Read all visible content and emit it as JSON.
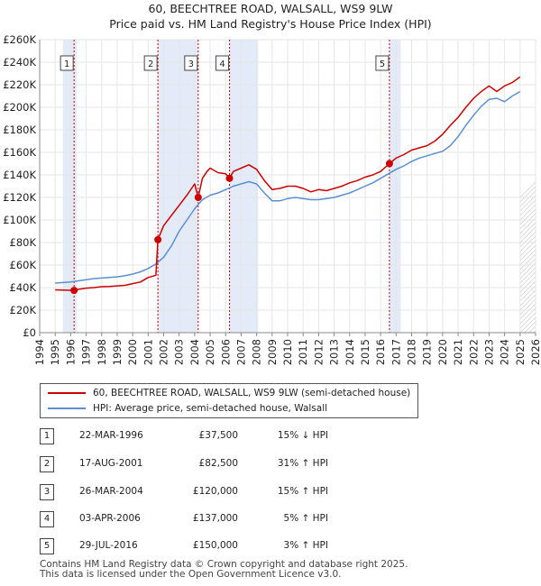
{
  "title_line1": "60, BEECHTREE ROAD, WALSALL, WS9 9LW",
  "title_line2": "Price paid vs. HM Land Registry's House Price Index (HPI)",
  "chart_data": {
    "type": "line",
    "xlim": [
      1994,
      2026
    ],
    "ylim": [
      0,
      260000
    ],
    "x_ticks": [
      1994,
      1995,
      1996,
      1997,
      1998,
      1999,
      2000,
      2001,
      2002,
      2003,
      2004,
      2005,
      2006,
      2007,
      2008,
      2009,
      2010,
      2011,
      2012,
      2013,
      2014,
      2015,
      2016,
      2017,
      2018,
      2019,
      2020,
      2021,
      2022,
      2023,
      2024,
      2025,
      2026
    ],
    "y_ticks": [
      0,
      20000,
      40000,
      60000,
      80000,
      100000,
      120000,
      140000,
      160000,
      180000,
      200000,
      220000,
      240000,
      260000
    ],
    "y_tick_labels": [
      "£0",
      "£20K",
      "£40K",
      "£60K",
      "£80K",
      "£100K",
      "£120K",
      "£140K",
      "£160K",
      "£180K",
      "£200K",
      "£220K",
      "£240K",
      "£260K"
    ],
    "colors": {
      "property": "#cc0000",
      "hpi": "#5b8fd1",
      "shade": "#e3ebf8",
      "vline": "#cc0000"
    },
    "shaded_spans": [
      [
        1995.5,
        1996.4
      ],
      [
        2001.6,
        2004.25
      ],
      [
        2006.25,
        2008.1
      ],
      [
        2016.55,
        2017.3
      ]
    ],
    "transactions": [
      {
        "n": "1",
        "x": 1996.22,
        "value": 37500
      },
      {
        "n": "2",
        "x": 2001.63,
        "value": 82500
      },
      {
        "n": "3",
        "x": 2004.23,
        "value": 120000
      },
      {
        "n": "4",
        "x": 2006.25,
        "value": 137000
      },
      {
        "n": "5",
        "x": 2016.57,
        "value": 150000
      }
    ],
    "series": [
      {
        "name": "60, BEECHTREE ROAD, WALSALL, WS9 9LW (semi-detached house)",
        "key": "property",
        "x": [
          1995.0,
          1995.5,
          1996.0,
          1996.22,
          1996.5,
          1997.0,
          1997.5,
          1998.0,
          1998.5,
          1999.0,
          1999.5,
          2000.0,
          2000.5,
          2001.0,
          2001.5,
          2001.63,
          2002.0,
          2002.5,
          2003.0,
          2003.5,
          2004.0,
          2004.23,
          2004.5,
          2004.8,
          2005.0,
          2005.5,
          2006.0,
          2006.25,
          2006.5,
          2007.0,
          2007.5,
          2008.0,
          2008.5,
          2009.0,
          2009.5,
          2010.0,
          2010.5,
          2011.0,
          2011.5,
          2012.0,
          2012.5,
          2013.0,
          2013.5,
          2014.0,
          2014.5,
          2015.0,
          2015.5,
          2016.0,
          2016.57,
          2017.0,
          2017.5,
          2018.0,
          2018.5,
          2019.0,
          2019.5,
          2020.0,
          2020.5,
          2021.0,
          2021.5,
          2022.0,
          2022.5,
          2023.0,
          2023.5,
          2024.0,
          2024.5,
          2025.0
        ],
        "y": [
          38000,
          37800,
          37600,
          37500,
          38500,
          39500,
          40000,
          40800,
          41000,
          41500,
          42000,
          43500,
          45000,
          49000,
          51000,
          82500,
          95000,
          104000,
          113000,
          122000,
          132000,
          120000,
          137000,
          143000,
          146000,
          142000,
          141000,
          137000,
          143000,
          146000,
          149000,
          145000,
          135000,
          127000,
          128000,
          130000,
          130000,
          128000,
          125000,
          127000,
          126000,
          128000,
          130000,
          133000,
          135000,
          138000,
          140000,
          143000,
          150000,
          155000,
          158000,
          162000,
          164000,
          166000,
          170000,
          176000,
          184000,
          191000,
          200000,
          208000,
          214000,
          219000,
          214000,
          219000,
          222000,
          227000
        ]
      },
      {
        "name": "HPI: Average price, semi-detached house, Walsall",
        "key": "hpi",
        "x": [
          1995.0,
          1995.5,
          1996.0,
          1996.5,
          1997.0,
          1997.5,
          1998.0,
          1998.5,
          1999.0,
          1999.5,
          2000.0,
          2000.5,
          2001.0,
          2001.5,
          2002.0,
          2002.5,
          2003.0,
          2003.5,
          2004.0,
          2004.5,
          2005.0,
          2005.5,
          2006.0,
          2006.5,
          2007.0,
          2007.5,
          2008.0,
          2008.5,
          2009.0,
          2009.5,
          2010.0,
          2010.5,
          2011.0,
          2011.5,
          2012.0,
          2012.5,
          2013.0,
          2013.5,
          2014.0,
          2014.5,
          2015.0,
          2015.5,
          2016.0,
          2016.5,
          2017.0,
          2017.5,
          2018.0,
          2018.5,
          2019.0,
          2019.5,
          2020.0,
          2020.5,
          2021.0,
          2021.5,
          2022.0,
          2022.5,
          2023.0,
          2023.5,
          2024.0,
          2024.5,
          2025.0
        ],
        "y": [
          44000,
          44500,
          45000,
          46000,
          47000,
          48000,
          48500,
          49000,
          49500,
          50500,
          52000,
          54000,
          57000,
          61000,
          67000,
          77000,
          90000,
          100000,
          110000,
          118000,
          122000,
          124000,
          127000,
          130000,
          132000,
          134000,
          132000,
          124000,
          117000,
          117000,
          119000,
          120000,
          119000,
          118000,
          118000,
          119000,
          120000,
          122000,
          124000,
          127000,
          130000,
          133000,
          137000,
          141000,
          145000,
          148000,
          152000,
          155000,
          157000,
          159000,
          161000,
          166000,
          174000,
          184000,
          193000,
          201000,
          207000,
          208000,
          205000,
          210000,
          214000
        ]
      }
    ]
  },
  "legend": {
    "property_label": "60, BEECHTREE ROAD, WALSALL, WS9 9LW (semi-detached house)",
    "hpi_label": "HPI: Average price, semi-detached house, Walsall"
  },
  "table": [
    {
      "n": "1",
      "date": "22-MAR-1996",
      "price": "£37,500",
      "hpi": "15% ↓ HPI"
    },
    {
      "n": "2",
      "date": "17-AUG-2001",
      "price": "£82,500",
      "hpi": "31% ↑ HPI"
    },
    {
      "n": "3",
      "date": "26-MAR-2004",
      "price": "£120,000",
      "hpi": "15% ↑ HPI"
    },
    {
      "n": "4",
      "date": "03-APR-2006",
      "price": "£137,000",
      "hpi": "5% ↑ HPI"
    },
    {
      "n": "5",
      "date": "29-JUL-2016",
      "price": "£150,000",
      "hpi": "3% ↑ HPI"
    }
  ],
  "footer_line1": "Contains HM Land Registry data © Crown copyright and database right 2025.",
  "footer_line2": "This data is licensed under the Open Government Licence v3.0."
}
